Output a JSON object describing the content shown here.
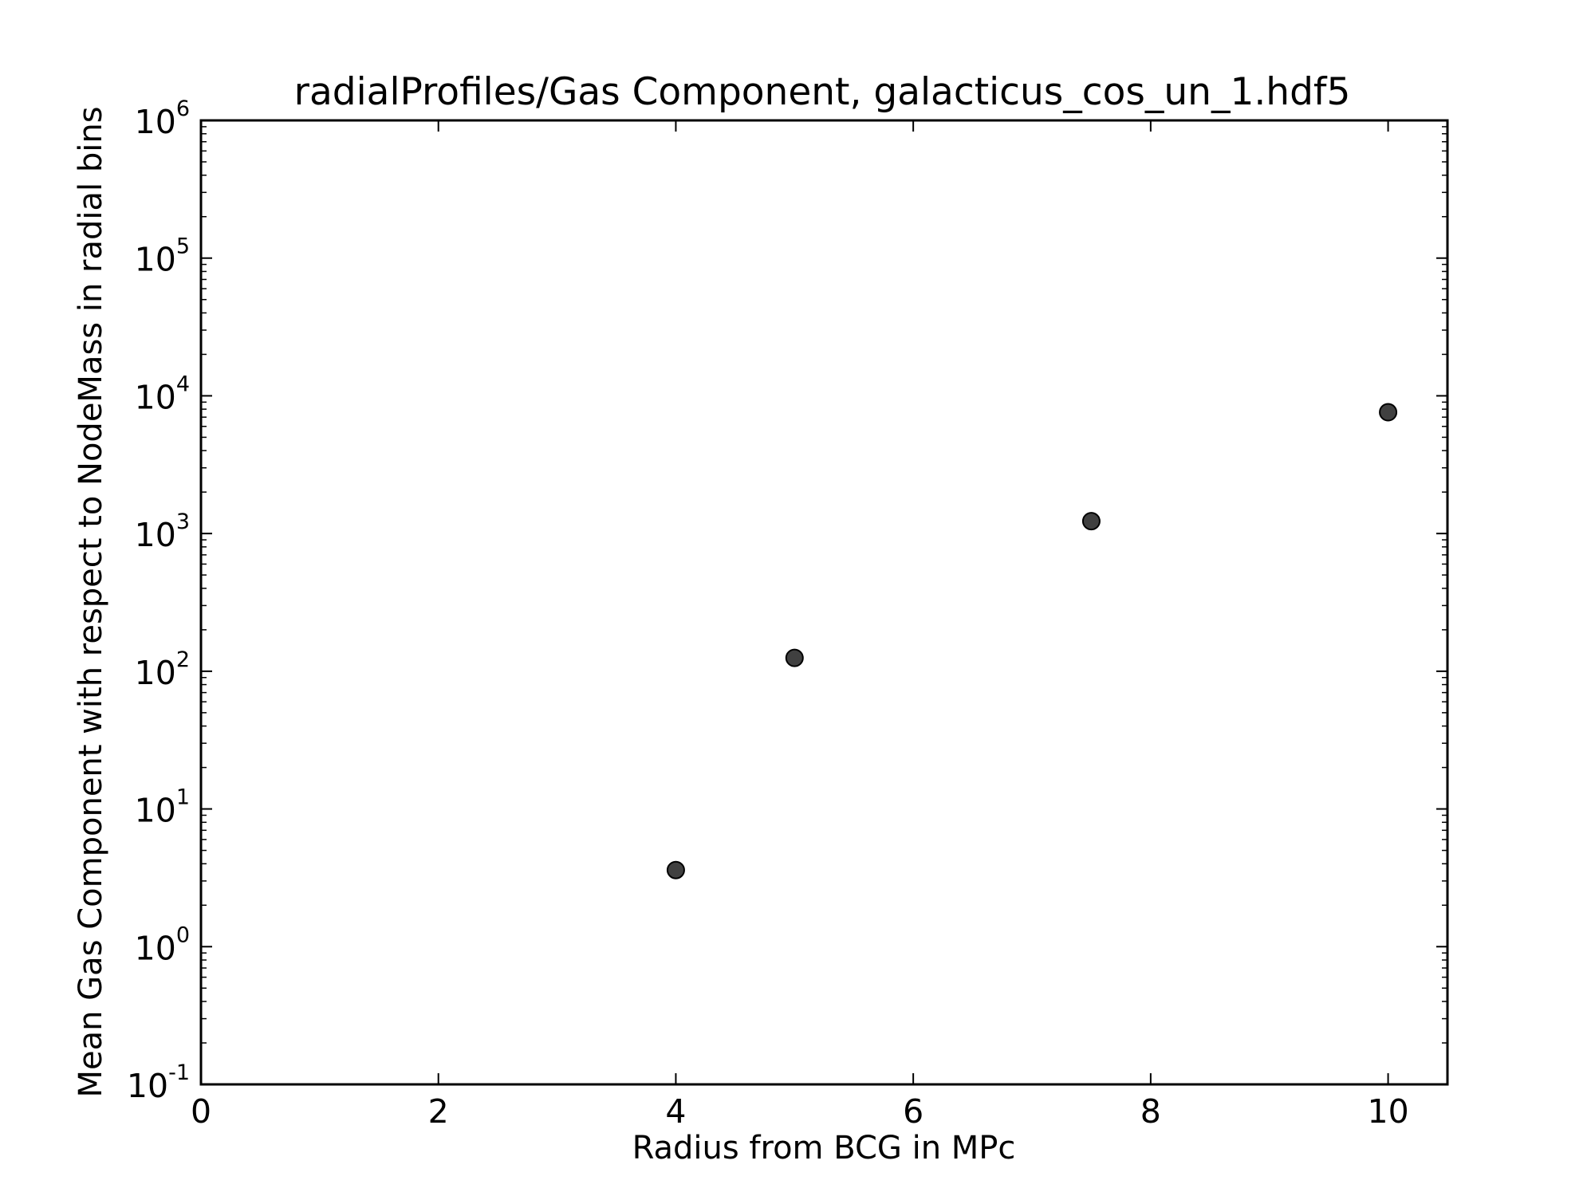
{
  "chart_data": {
    "type": "scatter",
    "title": "radialProfiles/Gas Component, galacticus_cos_un_1.hdf5",
    "xlabel": "Radius from BCG in MPc",
    "ylabel": "Mean Gas Component with respect to NodeMass in radial bins",
    "xlim": [
      0,
      10.5
    ],
    "ylim": [
      0.1,
      1000000
    ],
    "yscale": "log",
    "x_ticks": [
      "0",
      "2",
      "4",
      "6",
      "8",
      "10"
    ],
    "y_ticks": [
      {
        "base": "10",
        "exp": "-1"
      },
      {
        "base": "10",
        "exp": "0"
      },
      {
        "base": "10",
        "exp": "1"
      },
      {
        "base": "10",
        "exp": "2"
      },
      {
        "base": "10",
        "exp": "3"
      },
      {
        "base": "10",
        "exp": "4"
      },
      {
        "base": "10",
        "exp": "5"
      },
      {
        "base": "10",
        "exp": "6"
      }
    ],
    "grid": false,
    "marker_color": "#404040",
    "series": [
      {
        "points": [
          {
            "x": 4,
            "y": 3.6
          },
          {
            "x": 5,
            "y": 125
          },
          {
            "x": 7.5,
            "y": 1230
          },
          {
            "x": 10,
            "y": 7600
          }
        ]
      }
    ]
  }
}
